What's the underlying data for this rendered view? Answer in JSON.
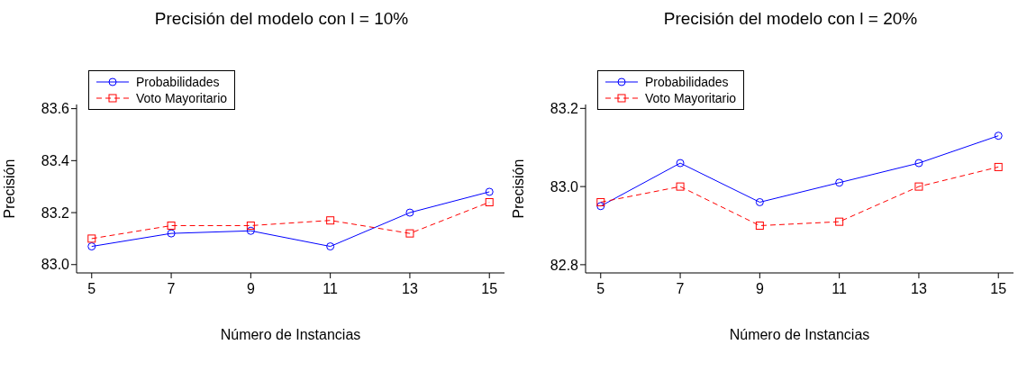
{
  "chart_data": [
    {
      "type": "line",
      "title": "Precisión del modelo con l = 10%",
      "xlabel": "Número de Instancias",
      "ylabel": "Precisión",
      "x": [
        5,
        7,
        9,
        11,
        13,
        15
      ],
      "xlim": [
        4.62,
        15.38
      ],
      "xticks": [
        5,
        7,
        9,
        11,
        13,
        15
      ],
      "ylim": [
        82.968,
        83.616
      ],
      "yticks": [
        {
          "value": 83.0,
          "label": "83.0"
        },
        {
          "value": 83.2,
          "label": "83.2"
        },
        {
          "value": 83.4,
          "label": "83.4"
        },
        {
          "value": 83.6,
          "label": "83.6"
        }
      ],
      "legend": "top left",
      "grid": false,
      "series": [
        {
          "name": "Probabilidades",
          "color": "#0000ff",
          "marker": "circle",
          "line_style": "solid",
          "values": [
            83.07,
            83.12,
            83.13,
            83.07,
            83.2,
            83.28
          ]
        },
        {
          "name": "Voto Mayoritario",
          "color": "#ff0000",
          "marker": "square",
          "line_style": "dashed",
          "values": [
            83.1,
            83.15,
            83.15,
            83.17,
            83.12,
            83.24
          ]
        }
      ]
    },
    {
      "type": "line",
      "title": "Precisión del modelo con l = 20%",
      "xlabel": "Número de Instancias",
      "ylabel": "Precisión",
      "x": [
        5,
        7,
        9,
        11,
        13,
        15
      ],
      "xlim": [
        4.62,
        15.38
      ],
      "xticks": [
        5,
        7,
        9,
        11,
        13,
        15
      ],
      "ylim": [
        82.779,
        83.21
      ],
      "yticks": [
        {
          "value": 82.8,
          "label": "82.8"
        },
        {
          "value": 83.0,
          "label": "83.0"
        },
        {
          "value": 83.2,
          "label": "83.2"
        }
      ],
      "legend": "top left",
      "grid": false,
      "series": [
        {
          "name": "Probabilidades",
          "color": "#0000ff",
          "marker": "circle",
          "line_style": "solid",
          "values": [
            82.95,
            83.06,
            82.96,
            83.01,
            83.06,
            83.13
          ]
        },
        {
          "name": "Voto Mayoritario",
          "color": "#ff0000",
          "marker": "square",
          "line_style": "dashed",
          "values": [
            82.96,
            83.0,
            82.9,
            82.91,
            83.0,
            83.05
          ]
        }
      ]
    }
  ]
}
